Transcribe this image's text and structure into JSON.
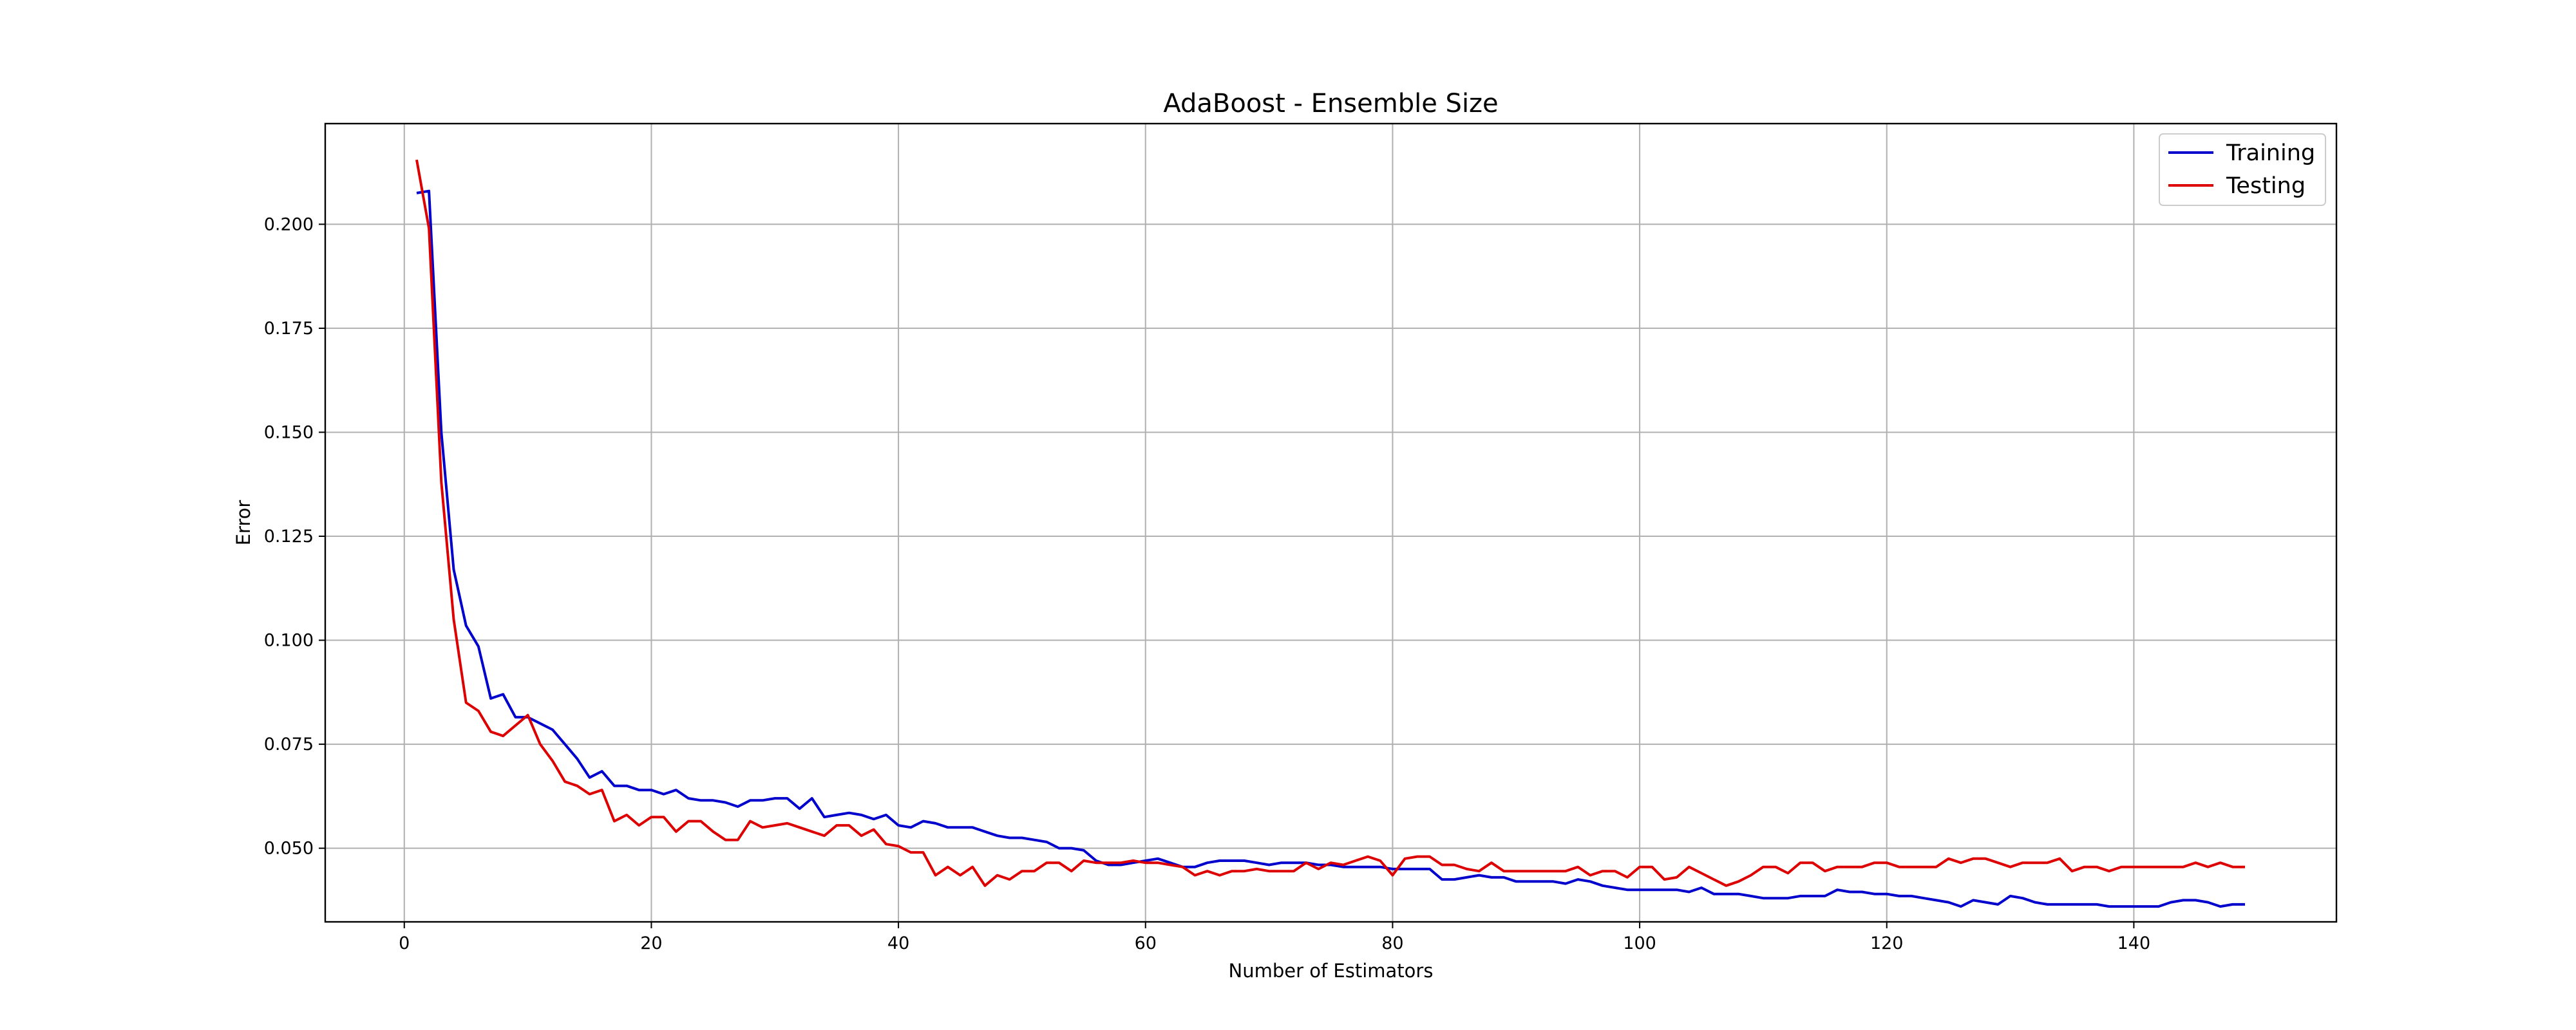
{
  "chart_data": {
    "type": "line",
    "title": "AdaBoost - Ensemble Size",
    "xlabel": "Number of Estimators",
    "ylabel": "Error",
    "xlim": [
      -6.4,
      156.4
    ],
    "ylim": [
      0.0323,
      0.2242
    ],
    "xticks": [
      0,
      20,
      40,
      60,
      80,
      100,
      120,
      140
    ],
    "xtick_labels": [
      "0",
      "20",
      "40",
      "60",
      "80",
      "100",
      "120",
      "140"
    ],
    "yticks": [
      0.05,
      0.075,
      0.1,
      0.125,
      0.15,
      0.175,
      0.2
    ],
    "ytick_labels": [
      "0.050",
      "0.075",
      "0.100",
      "0.125",
      "0.150",
      "0.175",
      "0.200"
    ],
    "grid": true,
    "legend_position": "top-right",
    "x": [
      1,
      2,
      3,
      4,
      5,
      6,
      7,
      8,
      9,
      10,
      11,
      12,
      13,
      14,
      15,
      16,
      17,
      18,
      19,
      20,
      21,
      22,
      23,
      24,
      25,
      26,
      27,
      28,
      29,
      30,
      31,
      32,
      33,
      34,
      35,
      36,
      37,
      38,
      39,
      40,
      41,
      42,
      43,
      44,
      45,
      46,
      47,
      48,
      49,
      50,
      51,
      52,
      53,
      54,
      55,
      56,
      57,
      58,
      59,
      60,
      61,
      62,
      63,
      64,
      65,
      66,
      67,
      68,
      69,
      70,
      71,
      72,
      73,
      74,
      75,
      76,
      77,
      78,
      79,
      80,
      81,
      82,
      83,
      84,
      85,
      86,
      87,
      88,
      89,
      90,
      91,
      92,
      93,
      94,
      95,
      96,
      97,
      98,
      99,
      100,
      101,
      102,
      103,
      104,
      105,
      106,
      107,
      108,
      109,
      110,
      111,
      112,
      113,
      114,
      115,
      116,
      117,
      118,
      119,
      120,
      121,
      122,
      123,
      124,
      125,
      126,
      127,
      128,
      129,
      130,
      131,
      132,
      133,
      134,
      135,
      136,
      137,
      138,
      139,
      140,
      141,
      142,
      143,
      144,
      145,
      146,
      147,
      148,
      149
    ],
    "series": [
      {
        "name": "Training",
        "color": "#0000cc",
        "values": [
          0.2075,
          0.208,
          0.15,
          0.117,
          0.1035,
          0.0985,
          0.086,
          0.087,
          0.0815,
          0.0815,
          0.08,
          0.0785,
          0.075,
          0.0715,
          0.067,
          0.0685,
          0.065,
          0.065,
          0.064,
          0.064,
          0.063,
          0.064,
          0.062,
          0.0615,
          0.0615,
          0.061,
          0.06,
          0.0615,
          0.0615,
          0.062,
          0.062,
          0.0595,
          0.062,
          0.0575,
          0.058,
          0.0585,
          0.058,
          0.057,
          0.058,
          0.0555,
          0.055,
          0.0565,
          0.056,
          0.055,
          0.055,
          0.055,
          0.054,
          0.053,
          0.0525,
          0.0525,
          0.052,
          0.0515,
          0.05,
          0.05,
          0.0495,
          0.047,
          0.046,
          0.046,
          0.0465,
          0.047,
          0.0475,
          0.0465,
          0.0455,
          0.0455,
          0.0465,
          0.047,
          0.047,
          0.047,
          0.0465,
          0.046,
          0.0465,
          0.0465,
          0.0465,
          0.046,
          0.046,
          0.0455,
          0.0455,
          0.0455,
          0.0455,
          0.045,
          0.045,
          0.045,
          0.045,
          0.0425,
          0.0425,
          0.043,
          0.0435,
          0.043,
          0.043,
          0.042,
          0.042,
          0.042,
          0.042,
          0.0415,
          0.0425,
          0.042,
          0.041,
          0.0405,
          0.04,
          0.04,
          0.04,
          0.04,
          0.04,
          0.0395,
          0.0405,
          0.039,
          0.039,
          0.039,
          0.0385,
          0.038,
          0.038,
          0.038,
          0.0385,
          0.0385,
          0.0385,
          0.04,
          0.0395,
          0.0395,
          0.039,
          0.039,
          0.0385,
          0.0385,
          0.038,
          0.0375,
          0.037,
          0.036,
          0.0375,
          0.037,
          0.0365,
          0.0385,
          0.038,
          0.037,
          0.0365,
          0.0365,
          0.0365,
          0.0365,
          0.0365,
          0.036,
          0.036,
          0.036,
          0.036,
          0.036,
          0.037,
          0.0375,
          0.0375,
          0.037,
          0.036,
          0.0365,
          0.0365
        ]
      },
      {
        "name": "Testing",
        "color": "#dd0000",
        "values": [
          0.2155,
          0.199,
          0.138,
          0.105,
          0.085,
          0.083,
          0.078,
          0.077,
          0.0795,
          0.082,
          0.075,
          0.071,
          0.066,
          0.065,
          0.063,
          0.064,
          0.0565,
          0.058,
          0.0555,
          0.0575,
          0.0575,
          0.054,
          0.0565,
          0.0565,
          0.054,
          0.052,
          0.052,
          0.0565,
          0.055,
          0.0555,
          0.056,
          0.055,
          0.054,
          0.053,
          0.0555,
          0.0555,
          0.053,
          0.0545,
          0.051,
          0.0505,
          0.049,
          0.049,
          0.0435,
          0.0455,
          0.0435,
          0.0455,
          0.041,
          0.0435,
          0.0425,
          0.0445,
          0.0445,
          0.0465,
          0.0465,
          0.0445,
          0.047,
          0.0465,
          0.0465,
          0.0465,
          0.047,
          0.0465,
          0.0465,
          0.046,
          0.0455,
          0.0435,
          0.0445,
          0.0435,
          0.0445,
          0.0445,
          0.045,
          0.0445,
          0.0445,
          0.0445,
          0.0465,
          0.045,
          0.0465,
          0.046,
          0.047,
          0.048,
          0.047,
          0.0435,
          0.0475,
          0.048,
          0.048,
          0.046,
          0.046,
          0.045,
          0.0445,
          0.0465,
          0.0445,
          0.0445,
          0.0445,
          0.0445,
          0.0445,
          0.0445,
          0.0455,
          0.0435,
          0.0445,
          0.0445,
          0.043,
          0.0455,
          0.0455,
          0.0425,
          0.043,
          0.0455,
          0.044,
          0.0425,
          0.041,
          0.042,
          0.0435,
          0.0455,
          0.0455,
          0.044,
          0.0465,
          0.0465,
          0.0445,
          0.0455,
          0.0455,
          0.0455,
          0.0465,
          0.0465,
          0.0455,
          0.0455,
          0.0455,
          0.0455,
          0.0475,
          0.0465,
          0.0475,
          0.0475,
          0.0465,
          0.0455,
          0.0465,
          0.0465,
          0.0465,
          0.0475,
          0.0445,
          0.0455,
          0.0455,
          0.0445,
          0.0455,
          0.0455,
          0.0455,
          0.0455,
          0.0455,
          0.0455,
          0.0465,
          0.0455,
          0.0465,
          0.0455,
          0.0455
        ]
      }
    ]
  }
}
